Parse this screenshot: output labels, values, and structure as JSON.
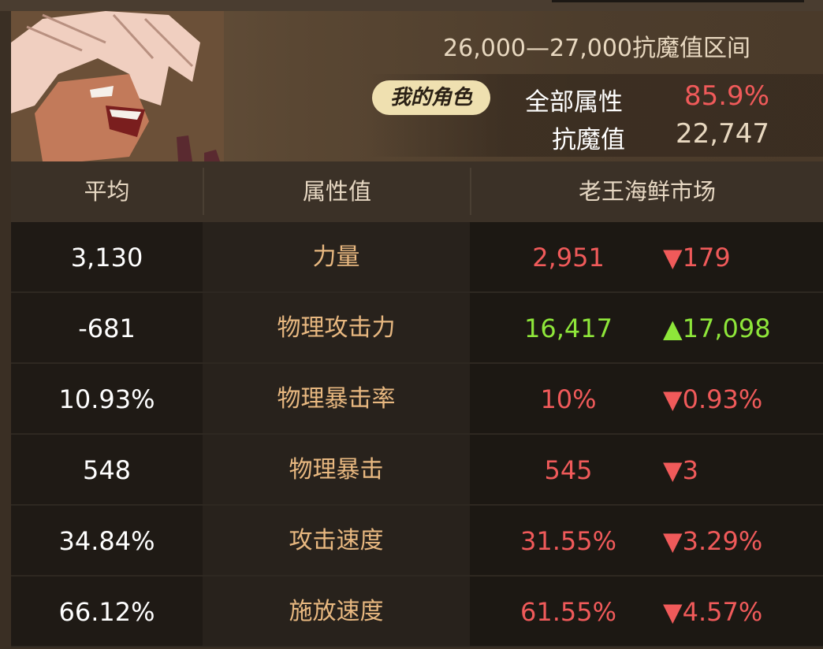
{
  "header": {
    "range_title": "26,000—27,000抗魔值区间",
    "my_character_badge": "我的角色",
    "all_attributes_label": "全部属性",
    "all_attributes_value": "85.9%",
    "anti_magic_label": "抗魔值",
    "anti_magic_value": "22,747"
  },
  "columns": [
    "平均",
    "属性值",
    "老王海鲜市场"
  ],
  "colors": {
    "down": "#f05a5a",
    "up": "#8ee63a",
    "attribute": "#e8b880"
  },
  "rows": [
    {
      "average": "3,130",
      "attribute": "力量",
      "mine": "2,951",
      "delta": "▼179",
      "trend": "down"
    },
    {
      "average": "-681",
      "attribute": "物理攻击力",
      "mine": "16,417",
      "delta": "▲17,098",
      "trend": "up"
    },
    {
      "average": "10.93%",
      "attribute": "物理暴击率",
      "mine": "10%",
      "delta": "▼0.93%",
      "trend": "down"
    },
    {
      "average": "548",
      "attribute": "物理暴击",
      "mine": "545",
      "delta": "▼3",
      "trend": "down"
    },
    {
      "average": "34.84%",
      "attribute": "攻击速度",
      "mine": "31.55%",
      "delta": "▼3.29%",
      "trend": "down"
    },
    {
      "average": "66.12%",
      "attribute": "施放速度",
      "mine": "61.55%",
      "delta": "▼4.57%",
      "trend": "down"
    }
  ]
}
